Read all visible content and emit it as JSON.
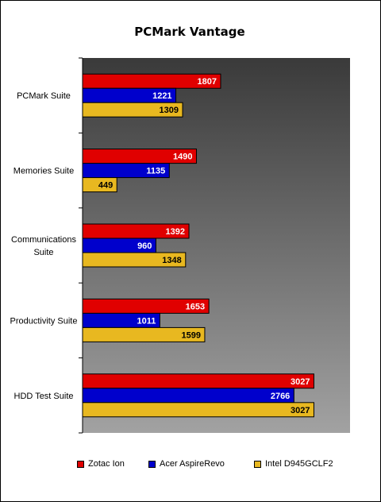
{
  "chart_data": {
    "type": "bar",
    "orientation": "horizontal",
    "title": "PCMark Vantage",
    "categories": [
      "PCMark Suite",
      "Memories Suite",
      "Communications Suite",
      "Productivity Suite",
      "HDD Test Suite"
    ],
    "category_lines": [
      [
        "PCMark Suite"
      ],
      [
        "Memories Suite"
      ],
      [
        "Communications",
        "Suite"
      ],
      [
        "Productivity Suite"
      ],
      [
        "HDD Test Suite"
      ]
    ],
    "series": [
      {
        "name": "Zotac Ion",
        "color": "#e00000",
        "values": [
          1807,
          1490,
          1392,
          1653,
          3027
        ]
      },
      {
        "name": "Acer AspireRevo",
        "color": "#0000cc",
        "values": [
          1221,
          1135,
          960,
          1011,
          2766
        ]
      },
      {
        "name": "Intel D945GCLF2",
        "color": "#e8b820",
        "values": [
          1309,
          449,
          1348,
          1599,
          3027
        ]
      }
    ],
    "xlim": [
      0,
      3500
    ],
    "value_axis_labels": false,
    "data_labels": true,
    "grid": false,
    "legend": "bottom",
    "plot_background": "gradient gray"
  }
}
